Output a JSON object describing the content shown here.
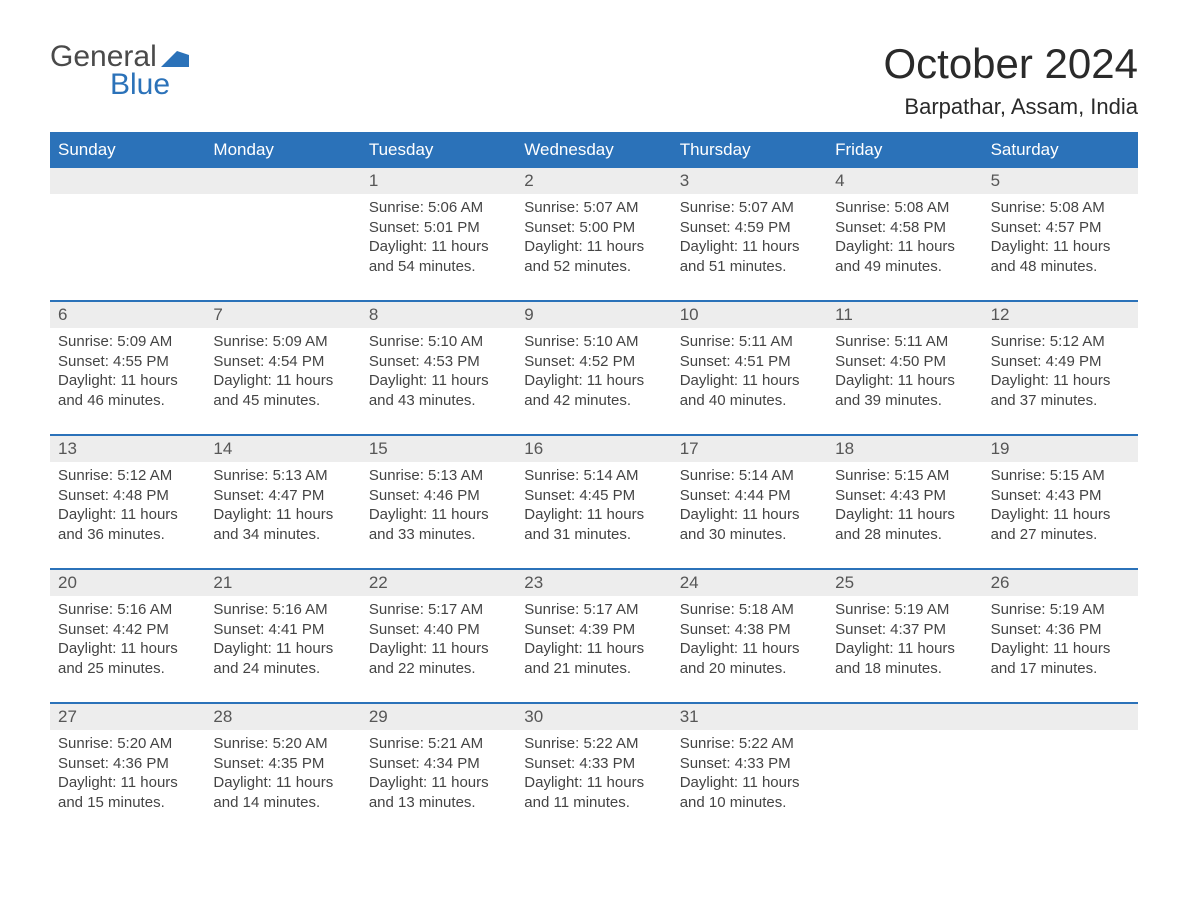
{
  "logo": {
    "text1": "General",
    "text2": "Blue",
    "mark_color": "#2b72b9"
  },
  "header": {
    "month_title": "October 2024",
    "location": "Barpathar, Assam, India"
  },
  "colors": {
    "header_bg": "#2b72b9",
    "header_text": "#ffffff",
    "daynum_bg": "#ededed",
    "daynum_text": "#565656",
    "body_text": "#444444",
    "divider": "#2b72b9",
    "page_bg": "#ffffff"
  },
  "weekdays": [
    "Sunday",
    "Monday",
    "Tuesday",
    "Wednesday",
    "Thursday",
    "Friday",
    "Saturday"
  ],
  "weeks": [
    [
      {
        "day": "",
        "sunrise": "",
        "sunset": "",
        "daylight": ""
      },
      {
        "day": "",
        "sunrise": "",
        "sunset": "",
        "daylight": ""
      },
      {
        "day": "1",
        "sunrise": "Sunrise: 5:06 AM",
        "sunset": "Sunset: 5:01 PM",
        "daylight": "Daylight: 11 hours and 54 minutes."
      },
      {
        "day": "2",
        "sunrise": "Sunrise: 5:07 AM",
        "sunset": "Sunset: 5:00 PM",
        "daylight": "Daylight: 11 hours and 52 minutes."
      },
      {
        "day": "3",
        "sunrise": "Sunrise: 5:07 AM",
        "sunset": "Sunset: 4:59 PM",
        "daylight": "Daylight: 11 hours and 51 minutes."
      },
      {
        "day": "4",
        "sunrise": "Sunrise: 5:08 AM",
        "sunset": "Sunset: 4:58 PM",
        "daylight": "Daylight: 11 hours and 49 minutes."
      },
      {
        "day": "5",
        "sunrise": "Sunrise: 5:08 AM",
        "sunset": "Sunset: 4:57 PM",
        "daylight": "Daylight: 11 hours and 48 minutes."
      }
    ],
    [
      {
        "day": "6",
        "sunrise": "Sunrise: 5:09 AM",
        "sunset": "Sunset: 4:55 PM",
        "daylight": "Daylight: 11 hours and 46 minutes."
      },
      {
        "day": "7",
        "sunrise": "Sunrise: 5:09 AM",
        "sunset": "Sunset: 4:54 PM",
        "daylight": "Daylight: 11 hours and 45 minutes."
      },
      {
        "day": "8",
        "sunrise": "Sunrise: 5:10 AM",
        "sunset": "Sunset: 4:53 PM",
        "daylight": "Daylight: 11 hours and 43 minutes."
      },
      {
        "day": "9",
        "sunrise": "Sunrise: 5:10 AM",
        "sunset": "Sunset: 4:52 PM",
        "daylight": "Daylight: 11 hours and 42 minutes."
      },
      {
        "day": "10",
        "sunrise": "Sunrise: 5:11 AM",
        "sunset": "Sunset: 4:51 PM",
        "daylight": "Daylight: 11 hours and 40 minutes."
      },
      {
        "day": "11",
        "sunrise": "Sunrise: 5:11 AM",
        "sunset": "Sunset: 4:50 PM",
        "daylight": "Daylight: 11 hours and 39 minutes."
      },
      {
        "day": "12",
        "sunrise": "Sunrise: 5:12 AM",
        "sunset": "Sunset: 4:49 PM",
        "daylight": "Daylight: 11 hours and 37 minutes."
      }
    ],
    [
      {
        "day": "13",
        "sunrise": "Sunrise: 5:12 AM",
        "sunset": "Sunset: 4:48 PM",
        "daylight": "Daylight: 11 hours and 36 minutes."
      },
      {
        "day": "14",
        "sunrise": "Sunrise: 5:13 AM",
        "sunset": "Sunset: 4:47 PM",
        "daylight": "Daylight: 11 hours and 34 minutes."
      },
      {
        "day": "15",
        "sunrise": "Sunrise: 5:13 AM",
        "sunset": "Sunset: 4:46 PM",
        "daylight": "Daylight: 11 hours and 33 minutes."
      },
      {
        "day": "16",
        "sunrise": "Sunrise: 5:14 AM",
        "sunset": "Sunset: 4:45 PM",
        "daylight": "Daylight: 11 hours and 31 minutes."
      },
      {
        "day": "17",
        "sunrise": "Sunrise: 5:14 AM",
        "sunset": "Sunset: 4:44 PM",
        "daylight": "Daylight: 11 hours and 30 minutes."
      },
      {
        "day": "18",
        "sunrise": "Sunrise: 5:15 AM",
        "sunset": "Sunset: 4:43 PM",
        "daylight": "Daylight: 11 hours and 28 minutes."
      },
      {
        "day": "19",
        "sunrise": "Sunrise: 5:15 AM",
        "sunset": "Sunset: 4:43 PM",
        "daylight": "Daylight: 11 hours and 27 minutes."
      }
    ],
    [
      {
        "day": "20",
        "sunrise": "Sunrise: 5:16 AM",
        "sunset": "Sunset: 4:42 PM",
        "daylight": "Daylight: 11 hours and 25 minutes."
      },
      {
        "day": "21",
        "sunrise": "Sunrise: 5:16 AM",
        "sunset": "Sunset: 4:41 PM",
        "daylight": "Daylight: 11 hours and 24 minutes."
      },
      {
        "day": "22",
        "sunrise": "Sunrise: 5:17 AM",
        "sunset": "Sunset: 4:40 PM",
        "daylight": "Daylight: 11 hours and 22 minutes."
      },
      {
        "day": "23",
        "sunrise": "Sunrise: 5:17 AM",
        "sunset": "Sunset: 4:39 PM",
        "daylight": "Daylight: 11 hours and 21 minutes."
      },
      {
        "day": "24",
        "sunrise": "Sunrise: 5:18 AM",
        "sunset": "Sunset: 4:38 PM",
        "daylight": "Daylight: 11 hours and 20 minutes."
      },
      {
        "day": "25",
        "sunrise": "Sunrise: 5:19 AM",
        "sunset": "Sunset: 4:37 PM",
        "daylight": "Daylight: 11 hours and 18 minutes."
      },
      {
        "day": "26",
        "sunrise": "Sunrise: 5:19 AM",
        "sunset": "Sunset: 4:36 PM",
        "daylight": "Daylight: 11 hours and 17 minutes."
      }
    ],
    [
      {
        "day": "27",
        "sunrise": "Sunrise: 5:20 AM",
        "sunset": "Sunset: 4:36 PM",
        "daylight": "Daylight: 11 hours and 15 minutes."
      },
      {
        "day": "28",
        "sunrise": "Sunrise: 5:20 AM",
        "sunset": "Sunset: 4:35 PM",
        "daylight": "Daylight: 11 hours and 14 minutes."
      },
      {
        "day": "29",
        "sunrise": "Sunrise: 5:21 AM",
        "sunset": "Sunset: 4:34 PM",
        "daylight": "Daylight: 11 hours and 13 minutes."
      },
      {
        "day": "30",
        "sunrise": "Sunrise: 5:22 AM",
        "sunset": "Sunset: 4:33 PM",
        "daylight": "Daylight: 11 hours and 11 minutes."
      },
      {
        "day": "31",
        "sunrise": "Sunrise: 5:22 AM",
        "sunset": "Sunset: 4:33 PM",
        "daylight": "Daylight: 11 hours and 10 minutes."
      },
      {
        "day": "",
        "sunrise": "",
        "sunset": "",
        "daylight": ""
      },
      {
        "day": "",
        "sunrise": "",
        "sunset": "",
        "daylight": ""
      }
    ]
  ]
}
